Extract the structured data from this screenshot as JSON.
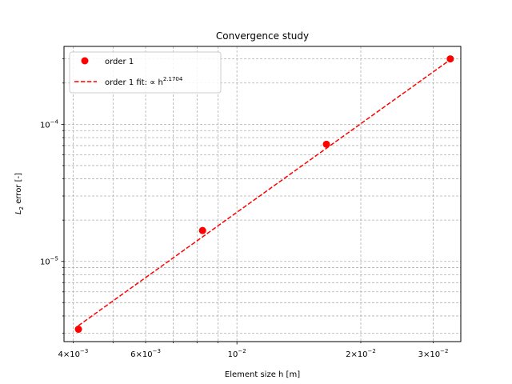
{
  "chart_data": {
    "type": "scatter",
    "title": "Convergence study",
    "xlabel": "Element size h [m]",
    "ylabel": "L",
    "ylabel_sub": "2",
    "ylabel_rest": " error [-]",
    "xscale": "log",
    "yscale": "log",
    "xlim": [
      0.0038,
      0.035
    ],
    "ylim": [
      2.6e-06,
      0.00037
    ],
    "grid": "both (major and minor), dashed",
    "legend_position": "top-left",
    "x_ticks": [
      {
        "value": 0.004,
        "mantissa": "4",
        "exp": "−3"
      },
      {
        "value": 0.006,
        "mantissa": "6",
        "exp": "−3"
      },
      {
        "value": 0.01,
        "mantissa": "",
        "exp": "−2"
      },
      {
        "value": 0.02,
        "mantissa": "2",
        "exp": "−2"
      },
      {
        "value": 0.03,
        "mantissa": "3",
        "exp": "−2"
      }
    ],
    "y_ticks": [
      {
        "value": 0.0001,
        "exp": "−4"
      },
      {
        "value": 1e-05,
        "exp": "−5"
      }
    ],
    "series": [
      {
        "name": "order 1",
        "kind": "markers",
        "color": "#ff0000",
        "x": [
          0.00412,
          0.00825,
          0.0165,
          0.033
        ],
        "y": [
          3.2e-06,
          1.68e-05,
          7.15e-05,
          0.0003
        ]
      },
      {
        "name": "order 1 fit: ∝ h",
        "name_sup": "2.1704",
        "kind": "dashed-line",
        "color": "#ff0000",
        "x": [
          0.00412,
          0.033
        ],
        "y": [
          3.4e-06,
          0.000296
        ]
      }
    ]
  }
}
